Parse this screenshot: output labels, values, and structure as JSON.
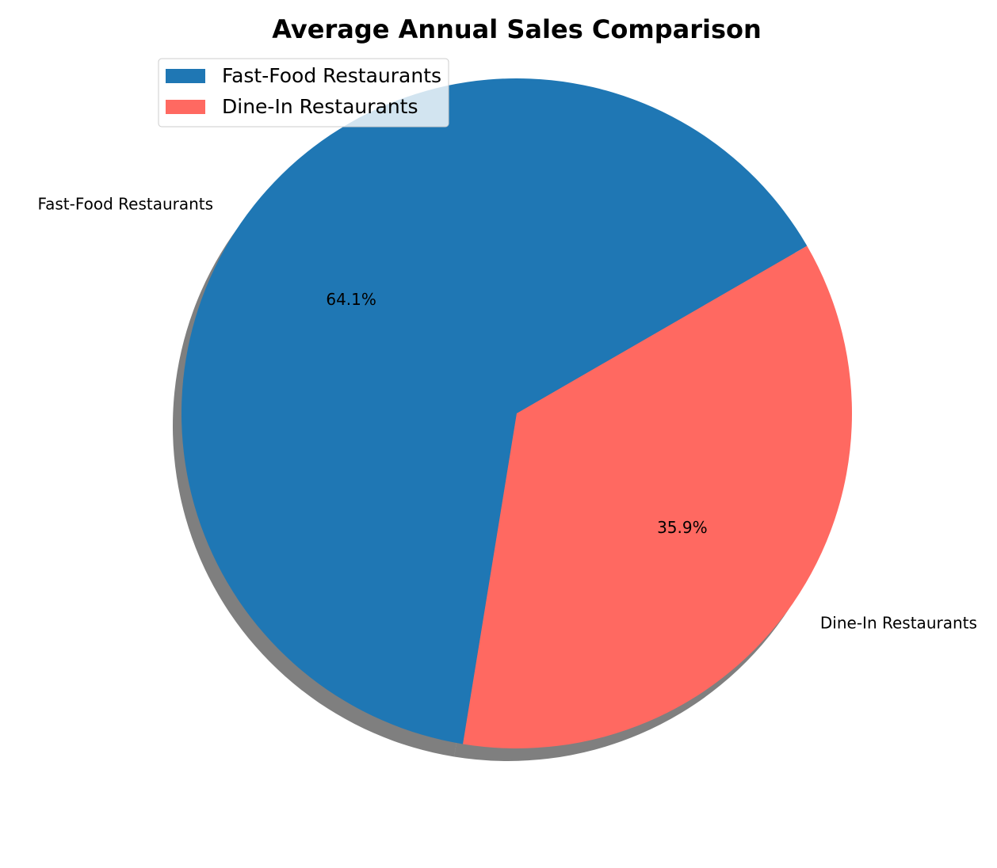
{
  "chart_data": {
    "type": "pie",
    "title": "Average Annual Sales Comparison",
    "categories": [
      "Fast-Food Restaurants",
      "Dine-In Restaurants"
    ],
    "values": [
      64.1,
      35.9
    ],
    "value_labels": [
      "64.1%",
      "35.9%"
    ],
    "colors": [
      "#1f77b4",
      "#ff6961"
    ],
    "start_angle_deg": 30,
    "shadow": true,
    "legend": {
      "placement": "upper-left",
      "entries": [
        "Fast-Food Restaurants",
        "Dine-In Restaurants"
      ]
    }
  }
}
